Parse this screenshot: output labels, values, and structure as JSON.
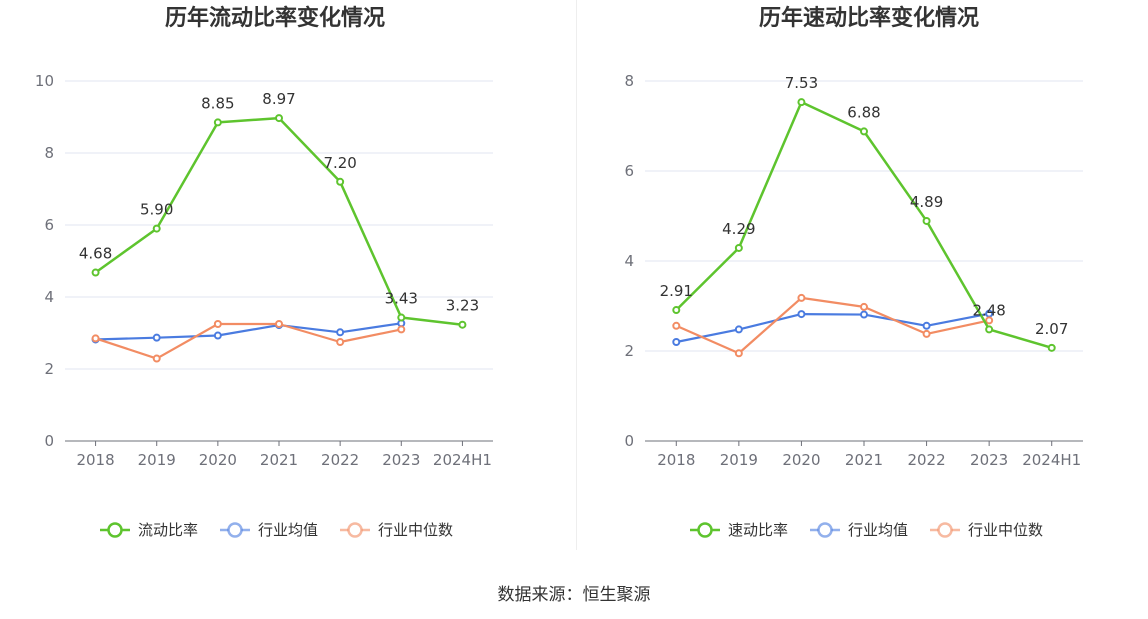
{
  "chart_data": [
    {
      "type": "line",
      "title": "历年流动比率变化情况",
      "categories": [
        "2018",
        "2019",
        "2020",
        "2021",
        "2022",
        "2023",
        "2024H1"
      ],
      "ylim": [
        0,
        10
      ],
      "yticks": [
        0,
        2,
        4,
        6,
        8,
        10
      ],
      "grid": true,
      "legend_position": "bottom",
      "series": [
        {
          "name": "流动比率",
          "color": "#5ec42e",
          "values": [
            4.68,
            5.9,
            8.85,
            8.97,
            7.2,
            3.43,
            3.23
          ],
          "labeled": true,
          "labels": [
            "4.68",
            "5.90",
            "8.85",
            "8.97",
            "7.20",
            "3.43",
            "3.23"
          ]
        },
        {
          "name": "行业均值",
          "color": "#4a7be0",
          "values": [
            2.82,
            2.87,
            2.93,
            3.22,
            3.02,
            3.27,
            null
          ],
          "labeled": false
        },
        {
          "name": "行业中位数",
          "color": "#f28c63",
          "values": [
            2.85,
            2.29,
            3.25,
            3.25,
            2.75,
            3.1,
            null
          ],
          "labeled": false
        }
      ]
    },
    {
      "type": "line",
      "title": "历年速动比率变化情况",
      "categories": [
        "2018",
        "2019",
        "2020",
        "2021",
        "2022",
        "2023",
        "2024H1"
      ],
      "ylim": [
        0,
        8
      ],
      "yticks": [
        0,
        2,
        4,
        6,
        8
      ],
      "grid": true,
      "legend_position": "bottom",
      "series": [
        {
          "name": "速动比率",
          "color": "#5ec42e",
          "values": [
            2.91,
            4.29,
            7.53,
            6.88,
            4.89,
            2.48,
            2.07
          ],
          "labeled": true,
          "labels": [
            "2.91",
            "4.29",
            "7.53",
            "6.88",
            "4.89",
            "2.48",
            "2.07"
          ]
        },
        {
          "name": "行业均值",
          "color": "#4a7be0",
          "values": [
            2.2,
            2.48,
            2.82,
            2.81,
            2.56,
            2.83,
            null
          ],
          "labeled": false
        },
        {
          "name": "行业中位数",
          "color": "#f28c63",
          "values": [
            2.56,
            1.95,
            3.18,
            2.98,
            2.38,
            2.68,
            null
          ],
          "labeled": false
        }
      ]
    }
  ],
  "footer": {
    "source": "数据来源：恒生聚源"
  }
}
